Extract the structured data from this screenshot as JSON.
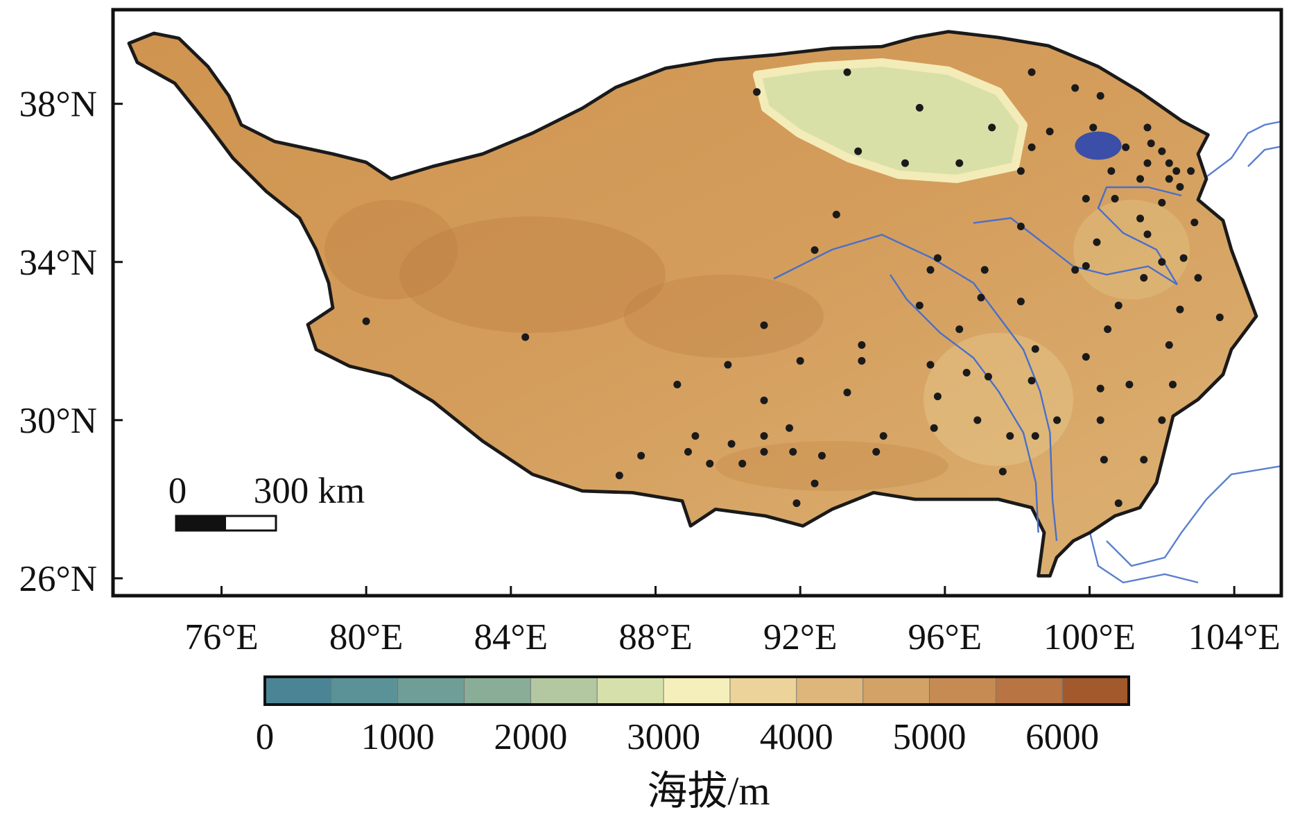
{
  "chart_data": {
    "type": "map",
    "xlim": [
      73,
      105.3
    ],
    "ylim": [
      25.56,
      40.38
    ],
    "xticks": [
      {
        "value": 76,
        "label": "76°E"
      },
      {
        "value": 80,
        "label": "80°E"
      },
      {
        "value": 84,
        "label": "84°E"
      },
      {
        "value": 88,
        "label": "88°E"
      },
      {
        "value": 92,
        "label": "92°E"
      },
      {
        "value": 96,
        "label": "96°E"
      },
      {
        "value": 100,
        "label": "100°E"
      },
      {
        "value": 104,
        "label": "104°E"
      }
    ],
    "yticks": [
      {
        "value": 26,
        "label": "26°N"
      },
      {
        "value": 30,
        "label": "30°N"
      },
      {
        "value": 34,
        "label": "34°N"
      },
      {
        "value": 38,
        "label": "38°N"
      }
    ],
    "marker_color": "#1a1a1a",
    "x": [
      90.8,
      93.3,
      95.3,
      98.4,
      99.6,
      100.3,
      97.3,
      98.9,
      98.4,
      93.6,
      94.9,
      96.4,
      98.1,
      100.1,
      101.6,
      101.0,
      101.7,
      102.0,
      101.6,
      102.2,
      102.4,
      102.8,
      100.6,
      101.4,
      102.2,
      102.5,
      99.9,
      100.7,
      102.0,
      93.0,
      98.1,
      101.4,
      102.9,
      101.6,
      100.2,
      92.4,
      95.8,
      99.9,
      102.6,
      102.0,
      95.6,
      97.1,
      99.6,
      103.0,
      101.5,
      97.0,
      98.1,
      100.8,
      95.3,
      102.5,
      103.6,
      80.0,
      91.0,
      84.4,
      96.4,
      100.5,
      93.7,
      98.5,
      102.2,
      99.9,
      93.7,
      92.0,
      90.0,
      95.6,
      96.6,
      97.2,
      98.4,
      88.6,
      100.3,
      101.1,
      102.3,
      95.8,
      93.3,
      91.0,
      96.9,
      99.1,
      100.3,
      102.0,
      95.7,
      91.7,
      91.0,
      89.1,
      94.3,
      97.8,
      98.5,
      90.1,
      88.9,
      91.0,
      91.8,
      92.6,
      94.1,
      87.6,
      89.5,
      90.4,
      100.4,
      101.5,
      87.0,
      97.6,
      92.4,
      91.9,
      100.8
    ],
    "y": [
      38.3,
      38.8,
      37.9,
      38.8,
      38.4,
      38.2,
      37.4,
      37.3,
      36.9,
      36.8,
      36.5,
      36.5,
      36.3,
      37.4,
      37.4,
      36.9,
      37.0,
      36.8,
      36.5,
      36.5,
      36.3,
      36.3,
      36.3,
      36.1,
      36.1,
      35.9,
      35.6,
      35.6,
      35.5,
      35.2,
      34.9,
      35.1,
      35.0,
      34.7,
      34.5,
      34.3,
      34.1,
      33.9,
      34.1,
      34.0,
      33.8,
      33.8,
      33.8,
      33.6,
      33.6,
      33.1,
      33.0,
      32.9,
      32.9,
      32.8,
      32.6,
      32.5,
      32.4,
      32.1,
      32.3,
      32.3,
      31.9,
      31.8,
      31.9,
      31.6,
      31.5,
      31.5,
      31.4,
      31.4,
      31.2,
      31.1,
      31.0,
      30.9,
      30.8,
      30.9,
      30.9,
      30.6,
      30.7,
      30.5,
      30.0,
      30.0,
      30.0,
      30.0,
      29.8,
      29.8,
      29.6,
      29.6,
      29.6,
      29.6,
      29.6,
      29.4,
      29.2,
      29.2,
      29.2,
      29.1,
      29.2,
      29.1,
      28.9,
      28.9,
      29.0,
      29.0,
      28.6,
      28.7,
      28.4,
      27.9,
      27.9
    ],
    "scale_labels": [
      "0",
      "300 km"
    ],
    "colorbar": {
      "label": "海拔/m",
      "lim": [
        0,
        6500
      ],
      "ticks": [
        0,
        1000,
        2000,
        3000,
        4000,
        5000,
        6000
      ],
      "colors": [
        "#4b8595",
        "#5b9298",
        "#6f9e97",
        "#8aad97",
        "#b3c8a0",
        "#d6e0ab",
        "#f5efbb",
        "#ebd39a",
        "#deb67c",
        "#d2a267",
        "#c58b52",
        "#b87442",
        "#a25a2d"
      ]
    }
  }
}
